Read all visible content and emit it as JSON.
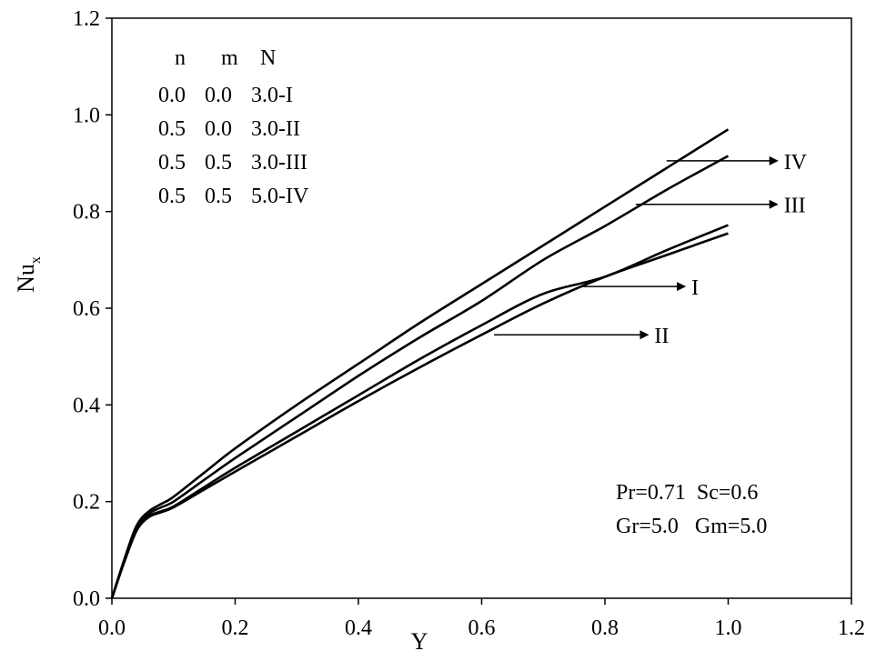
{
  "chart_data": {
    "type": "line",
    "title": "",
    "xlabel": "Y",
    "ylabel": "Nu",
    "ylabel_sub": "x",
    "xlim": [
      0.0,
      1.2
    ],
    "ylim": [
      0.0,
      1.2
    ],
    "x_ticks": [
      "0.0",
      "0.2",
      "0.4",
      "0.6",
      "0.8",
      "1.0",
      "1.2"
    ],
    "y_ticks": [
      "0.0",
      "0.2",
      "0.4",
      "0.6",
      "0.8",
      "1.0",
      "1.2"
    ],
    "grid": false,
    "legend": {
      "placement": "top-left",
      "header": [
        "n",
        "m",
        "N"
      ],
      "rows": [
        [
          "0.0",
          "0.0",
          "3.0-I"
        ],
        [
          "0.5",
          "0.0",
          "3.0-II"
        ],
        [
          "0.5",
          "0.5",
          "3.0-III"
        ],
        [
          "0.5",
          "0.5",
          "5.0-IV"
        ]
      ]
    },
    "parameters": [
      "Pr=0.71  Sc=0.6",
      "Gr=5.0   Gm=5.0"
    ],
    "series": [
      {
        "name": "I",
        "x": [
          0.0,
          0.02,
          0.04,
          0.06,
          0.08,
          0.1,
          0.15,
          0.2,
          0.3,
          0.4,
          0.5,
          0.6,
          0.7,
          0.8,
          0.9,
          1.0
        ],
        "y": [
          0.0,
          0.075,
          0.14,
          0.17,
          0.18,
          0.19,
          0.23,
          0.27,
          0.345,
          0.42,
          0.495,
          0.565,
          0.63,
          0.665,
          0.72,
          0.772
        ]
      },
      {
        "name": "II",
        "x": [
          0.0,
          0.02,
          0.04,
          0.06,
          0.08,
          0.1,
          0.15,
          0.2,
          0.3,
          0.4,
          0.5,
          0.6,
          0.7,
          0.8,
          0.9,
          1.0
        ],
        "y": [
          0.0,
          0.075,
          0.14,
          0.168,
          0.178,
          0.188,
          0.225,
          0.262,
          0.335,
          0.408,
          0.478,
          0.545,
          0.61,
          0.665,
          0.71,
          0.755
        ]
      },
      {
        "name": "III",
        "x": [
          0.0,
          0.02,
          0.04,
          0.06,
          0.08,
          0.1,
          0.15,
          0.2,
          0.3,
          0.4,
          0.5,
          0.6,
          0.7,
          0.8,
          0.9,
          1.0
        ],
        "y": [
          0.0,
          0.078,
          0.145,
          0.175,
          0.188,
          0.2,
          0.245,
          0.29,
          0.375,
          0.46,
          0.54,
          0.615,
          0.7,
          0.77,
          0.845,
          0.915
        ]
      },
      {
        "name": "IV",
        "x": [
          0.0,
          0.02,
          0.04,
          0.06,
          0.08,
          0.1,
          0.15,
          0.2,
          0.3,
          0.4,
          0.5,
          0.6,
          0.7,
          0.8,
          0.9,
          1.0
        ],
        "y": [
          0.0,
          0.08,
          0.15,
          0.18,
          0.195,
          0.21,
          0.26,
          0.31,
          0.4,
          0.485,
          0.57,
          0.65,
          0.73,
          0.81,
          0.89,
          0.97
        ]
      }
    ],
    "annotations": [
      {
        "label": "IV",
        "target_series": "IV",
        "from": [
          0.9,
          0.905
        ],
        "to": [
          1.08,
          0.905
        ]
      },
      {
        "label": "III",
        "target_series": "III",
        "from": [
          0.85,
          0.815
        ],
        "to": [
          1.08,
          0.815
        ]
      },
      {
        "label": "I",
        "target_series": "I",
        "from": [
          0.76,
          0.645
        ],
        "to": [
          0.93,
          0.645
        ]
      },
      {
        "label": "II",
        "target_series": "II",
        "from": [
          0.62,
          0.545
        ],
        "to": [
          0.87,
          0.545
        ]
      }
    ]
  }
}
